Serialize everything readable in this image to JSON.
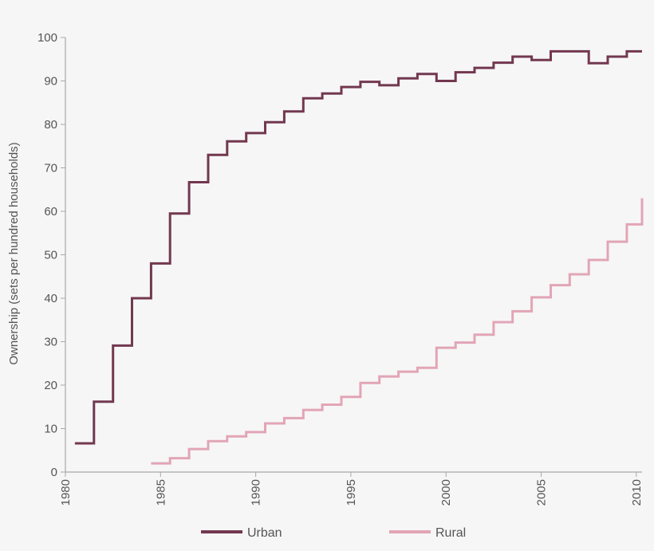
{
  "chart_data": {
    "type": "line",
    "step": true,
    "ylabel": "Ownership (sets per hundred households)",
    "xlabel": "",
    "title": "",
    "xlim": [
      1980,
      2010.3
    ],
    "ylim": [
      0,
      100
    ],
    "x_ticks": [
      "1980",
      "1985",
      "1990",
      "1995",
      "2000",
      "2005",
      "2010"
    ],
    "y_ticks": [
      "0",
      "10",
      "20",
      "30",
      "40",
      "50",
      "60",
      "70",
      "80",
      "90",
      "100"
    ],
    "grid": false,
    "legend_position": "bottom",
    "series": [
      {
        "name": "Urban",
        "color": "#72384f",
        "x": [
          1980.5,
          1981.5,
          1982.5,
          1983.5,
          1984.5,
          1985.5,
          1986.5,
          1987.5,
          1988.5,
          1989.5,
          1990.5,
          1991.5,
          1992.5,
          1993.5,
          1994.5,
          1995.5,
          1996.5,
          1997.5,
          1998.5,
          1999.5,
          2000.5,
          2001.5,
          2002.5,
          2003.5,
          2004.5,
          2005.5,
          2006.5,
          2007.5,
          2008.5,
          2009.5
        ],
        "values": [
          6.6,
          16.2,
          29.1,
          40.0,
          48.0,
          59.5,
          66.7,
          73.0,
          76.1,
          78.0,
          80.5,
          83.0,
          86.0,
          87.1,
          88.6,
          89.8,
          89.0,
          90.6,
          91.6,
          90.0,
          92.0,
          93.0,
          94.2,
          95.6,
          94.8,
          96.8,
          96.8,
          94.1,
          95.6,
          96.8
        ],
        "end_x": 2010.3
      },
      {
        "name": "Rural",
        "color": "#e2a5b6",
        "x": [
          1984.5,
          1985.5,
          1986.5,
          1987.5,
          1988.5,
          1989.5,
          1990.5,
          1991.5,
          1992.5,
          1993.5,
          1994.5,
          1995.5,
          1996.5,
          1997.5,
          1998.5,
          1999.5,
          2000.5,
          2001.5,
          2002.5,
          2003.5,
          2004.5,
          2005.5,
          2006.5,
          2007.5,
          2008.5,
          2009.5
        ],
        "values": [
          2.0,
          3.2,
          5.3,
          7.1,
          8.2,
          9.2,
          11.2,
          12.4,
          14.3,
          15.5,
          17.3,
          20.5,
          22.0,
          23.1,
          24.0,
          28.6,
          29.8,
          31.6,
          34.5,
          37.0,
          40.2,
          43.0,
          45.5,
          48.8,
          53.0,
          57.0
        ],
        "end_x": 2010.3,
        "end_value": 63.0
      }
    ]
  }
}
